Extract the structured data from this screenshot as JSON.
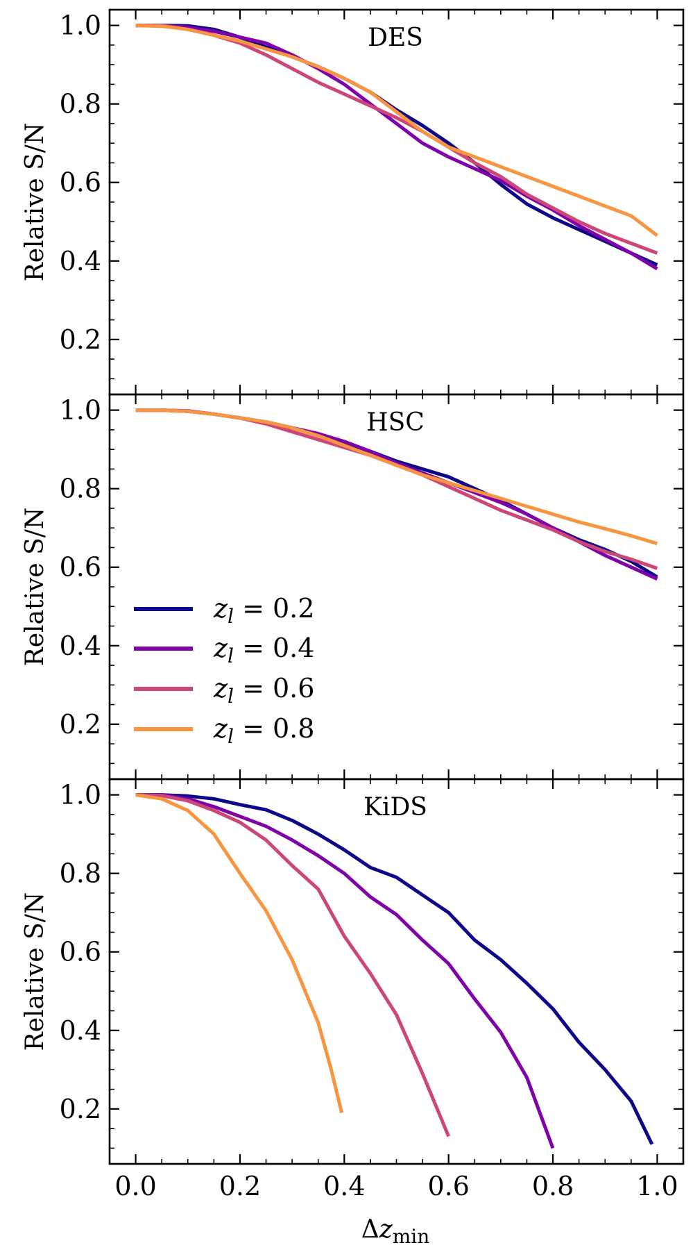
{
  "chart_data": [
    {
      "type": "line",
      "title": "DES",
      "xlabel": "",
      "ylabel": "Relative S/N",
      "xlim": [
        -0.05,
        1.05
      ],
      "ylim": [
        0.06,
        1.04
      ],
      "yticks": [
        "0.2",
        "0.4",
        "0.6",
        "0.8",
        "1.0"
      ],
      "xticks": [],
      "legend": null,
      "colors": [
        "#0d0887",
        "#7e03a8",
        "#cc4778",
        "#f89540"
      ],
      "series": [
        {
          "name": "z_l = 0.2",
          "x": [
            0,
            0.05,
            0.1,
            0.15,
            0.2,
            0.25,
            0.3,
            0.35,
            0.4,
            0.45,
            0.5,
            0.55,
            0.6,
            0.65,
            0.7,
            0.75,
            0.8,
            0.85,
            0.9,
            0.95,
            1.0
          ],
          "y": [
            1.0,
            1.0,
            0.999,
            0.99,
            0.97,
            0.945,
            0.92,
            0.895,
            0.865,
            0.83,
            0.785,
            0.745,
            0.7,
            0.65,
            0.595,
            0.545,
            0.51,
            0.48,
            0.45,
            0.42,
            0.39
          ]
        },
        {
          "name": "z_l = 0.4",
          "x": [
            0,
            0.05,
            0.1,
            0.15,
            0.2,
            0.25,
            0.3,
            0.35,
            0.4,
            0.45,
            0.5,
            0.55,
            0.6,
            0.65,
            0.7,
            0.75,
            0.8,
            0.85,
            0.9,
            0.95,
            1.0
          ],
          "y": [
            1.0,
            1.0,
            0.995,
            0.985,
            0.97,
            0.955,
            0.925,
            0.89,
            0.85,
            0.8,
            0.75,
            0.7,
            0.665,
            0.635,
            0.605,
            0.565,
            0.53,
            0.49,
            0.455,
            0.42,
            0.38
          ]
        },
        {
          "name": "z_l = 0.6",
          "x": [
            0,
            0.05,
            0.1,
            0.15,
            0.2,
            0.25,
            0.3,
            0.35,
            0.4,
            0.45,
            0.5,
            0.55,
            0.6,
            0.65,
            0.7,
            0.75,
            0.8,
            0.85,
            0.9,
            0.95,
            1.0
          ],
          "y": [
            1.0,
            1.0,
            0.99,
            0.975,
            0.955,
            0.925,
            0.89,
            0.855,
            0.825,
            0.795,
            0.765,
            0.73,
            0.69,
            0.65,
            0.615,
            0.57,
            0.535,
            0.5,
            0.47,
            0.445,
            0.42
          ]
        },
        {
          "name": "z_l = 0.8",
          "x": [
            0,
            0.05,
            0.1,
            0.15,
            0.2,
            0.25,
            0.3,
            0.35,
            0.4,
            0.45,
            0.5,
            0.55,
            0.6,
            0.65,
            0.7,
            0.75,
            0.8,
            0.85,
            0.9,
            0.95,
            1.0
          ],
          "y": [
            1.0,
            0.998,
            0.99,
            0.975,
            0.96,
            0.94,
            0.92,
            0.895,
            0.865,
            0.83,
            0.78,
            0.73,
            0.69,
            0.665,
            0.64,
            0.615,
            0.59,
            0.565,
            0.54,
            0.515,
            0.465
          ]
        }
      ]
    },
    {
      "type": "line",
      "title": "HSC",
      "xlabel": "",
      "ylabel": "Relative S/N",
      "xlim": [
        -0.05,
        1.05
      ],
      "ylim": [
        0.06,
        1.04
      ],
      "yticks": [
        "0.2",
        "0.4",
        "0.6",
        "0.8",
        "1.0"
      ],
      "xticks": [],
      "legend": "left",
      "legend_entries": [
        "z_l = 0.2",
        "z_l = 0.4",
        "z_l = 0.6",
        "z_l = 0.8"
      ],
      "colors": [
        "#0d0887",
        "#7e03a8",
        "#cc4778",
        "#f89540"
      ],
      "series": [
        {
          "name": "z_l = 0.2",
          "x": [
            0,
            0.05,
            0.1,
            0.15,
            0.2,
            0.25,
            0.3,
            0.35,
            0.4,
            0.45,
            0.5,
            0.55,
            0.6,
            0.65,
            0.7,
            0.75,
            0.8,
            0.85,
            0.9,
            0.95,
            1.0
          ],
          "y": [
            1.0,
            1.0,
            0.997,
            0.99,
            0.98,
            0.97,
            0.955,
            0.935,
            0.915,
            0.895,
            0.87,
            0.85,
            0.83,
            0.8,
            0.77,
            0.735,
            0.7,
            0.67,
            0.645,
            0.615,
            0.575
          ]
        },
        {
          "name": "z_l = 0.4",
          "x": [
            0,
            0.05,
            0.1,
            0.15,
            0.2,
            0.25,
            0.3,
            0.35,
            0.4,
            0.45,
            0.5,
            0.55,
            0.6,
            0.65,
            0.7,
            0.75,
            0.8,
            0.85,
            0.9,
            0.95,
            1.0
          ],
          "y": [
            1.0,
            1.0,
            0.998,
            0.99,
            0.98,
            0.968,
            0.955,
            0.94,
            0.92,
            0.895,
            0.865,
            0.84,
            0.815,
            0.79,
            0.765,
            0.735,
            0.7,
            0.665,
            0.63,
            0.6,
            0.57
          ]
        },
        {
          "name": "z_l = 0.6",
          "x": [
            0,
            0.05,
            0.1,
            0.15,
            0.2,
            0.25,
            0.3,
            0.35,
            0.4,
            0.45,
            0.5,
            0.55,
            0.6,
            0.65,
            0.7,
            0.75,
            0.8,
            0.85,
            0.9,
            0.95,
            1.0
          ],
          "y": [
            1.0,
            1.0,
            0.997,
            0.99,
            0.98,
            0.965,
            0.945,
            0.925,
            0.905,
            0.885,
            0.86,
            0.835,
            0.805,
            0.775,
            0.745,
            0.72,
            0.695,
            0.665,
            0.64,
            0.62,
            0.597
          ]
        },
        {
          "name": "z_l = 0.8",
          "x": [
            0,
            0.05,
            0.1,
            0.15,
            0.2,
            0.25,
            0.3,
            0.35,
            0.4,
            0.45,
            0.5,
            0.55,
            0.6,
            0.65,
            0.7,
            0.75,
            0.8,
            0.85,
            0.9,
            0.95,
            1.0
          ],
          "y": [
            1.0,
            1.0,
            0.997,
            0.99,
            0.98,
            0.97,
            0.955,
            0.935,
            0.91,
            0.885,
            0.86,
            0.835,
            0.815,
            0.795,
            0.775,
            0.755,
            0.735,
            0.715,
            0.698,
            0.68,
            0.66
          ]
        }
      ]
    },
    {
      "type": "line",
      "title": "KiDS",
      "xlabel": "Δz_min",
      "ylabel": "Relative S/N",
      "xlim": [
        -0.05,
        1.05
      ],
      "ylim": [
        0.06,
        1.04
      ],
      "yticks": [
        "0.2",
        "0.4",
        "0.6",
        "0.8",
        "1.0"
      ],
      "xticks": [
        "0.0",
        "0.2",
        "0.4",
        "0.6",
        "0.8",
        "1.0"
      ],
      "legend": null,
      "colors": [
        "#0d0887",
        "#7e03a8",
        "#cc4778",
        "#f89540"
      ],
      "series": [
        {
          "name": "z_l = 0.2",
          "x": [
            0,
            0.05,
            0.1,
            0.15,
            0.2,
            0.25,
            0.3,
            0.35,
            0.4,
            0.45,
            0.5,
            0.55,
            0.6,
            0.65,
            0.7,
            0.75,
            0.8,
            0.85,
            0.9,
            0.95,
            0.99
          ],
          "y": [
            1.0,
            1.0,
            0.997,
            0.99,
            0.975,
            0.962,
            0.935,
            0.9,
            0.86,
            0.815,
            0.79,
            0.745,
            0.7,
            0.63,
            0.58,
            0.52,
            0.455,
            0.37,
            0.3,
            0.22,
            0.11
          ]
        },
        {
          "name": "z_l = 0.4",
          "x": [
            0,
            0.05,
            0.1,
            0.15,
            0.2,
            0.25,
            0.3,
            0.35,
            0.4,
            0.45,
            0.5,
            0.55,
            0.6,
            0.65,
            0.7,
            0.75,
            0.8
          ],
          "y": [
            1.0,
            1.0,
            0.99,
            0.97,
            0.945,
            0.92,
            0.885,
            0.845,
            0.8,
            0.74,
            0.695,
            0.63,
            0.57,
            0.48,
            0.395,
            0.28,
            0.1
          ]
        },
        {
          "name": "z_l = 0.6",
          "x": [
            0,
            0.05,
            0.1,
            0.15,
            0.2,
            0.25,
            0.3,
            0.35,
            0.4,
            0.45,
            0.5,
            0.55,
            0.575,
            0.6
          ],
          "y": [
            1.0,
            0.998,
            0.985,
            0.96,
            0.93,
            0.885,
            0.82,
            0.76,
            0.64,
            0.545,
            0.44,
            0.29,
            0.21,
            0.13
          ]
        },
        {
          "name": "z_l = 0.8",
          "x": [
            0,
            0.05,
            0.1,
            0.15,
            0.2,
            0.25,
            0.3,
            0.35,
            0.375,
            0.395
          ],
          "y": [
            1.0,
            0.99,
            0.96,
            0.9,
            0.8,
            0.705,
            0.58,
            0.42,
            0.3,
            0.19
          ]
        }
      ]
    }
  ]
}
